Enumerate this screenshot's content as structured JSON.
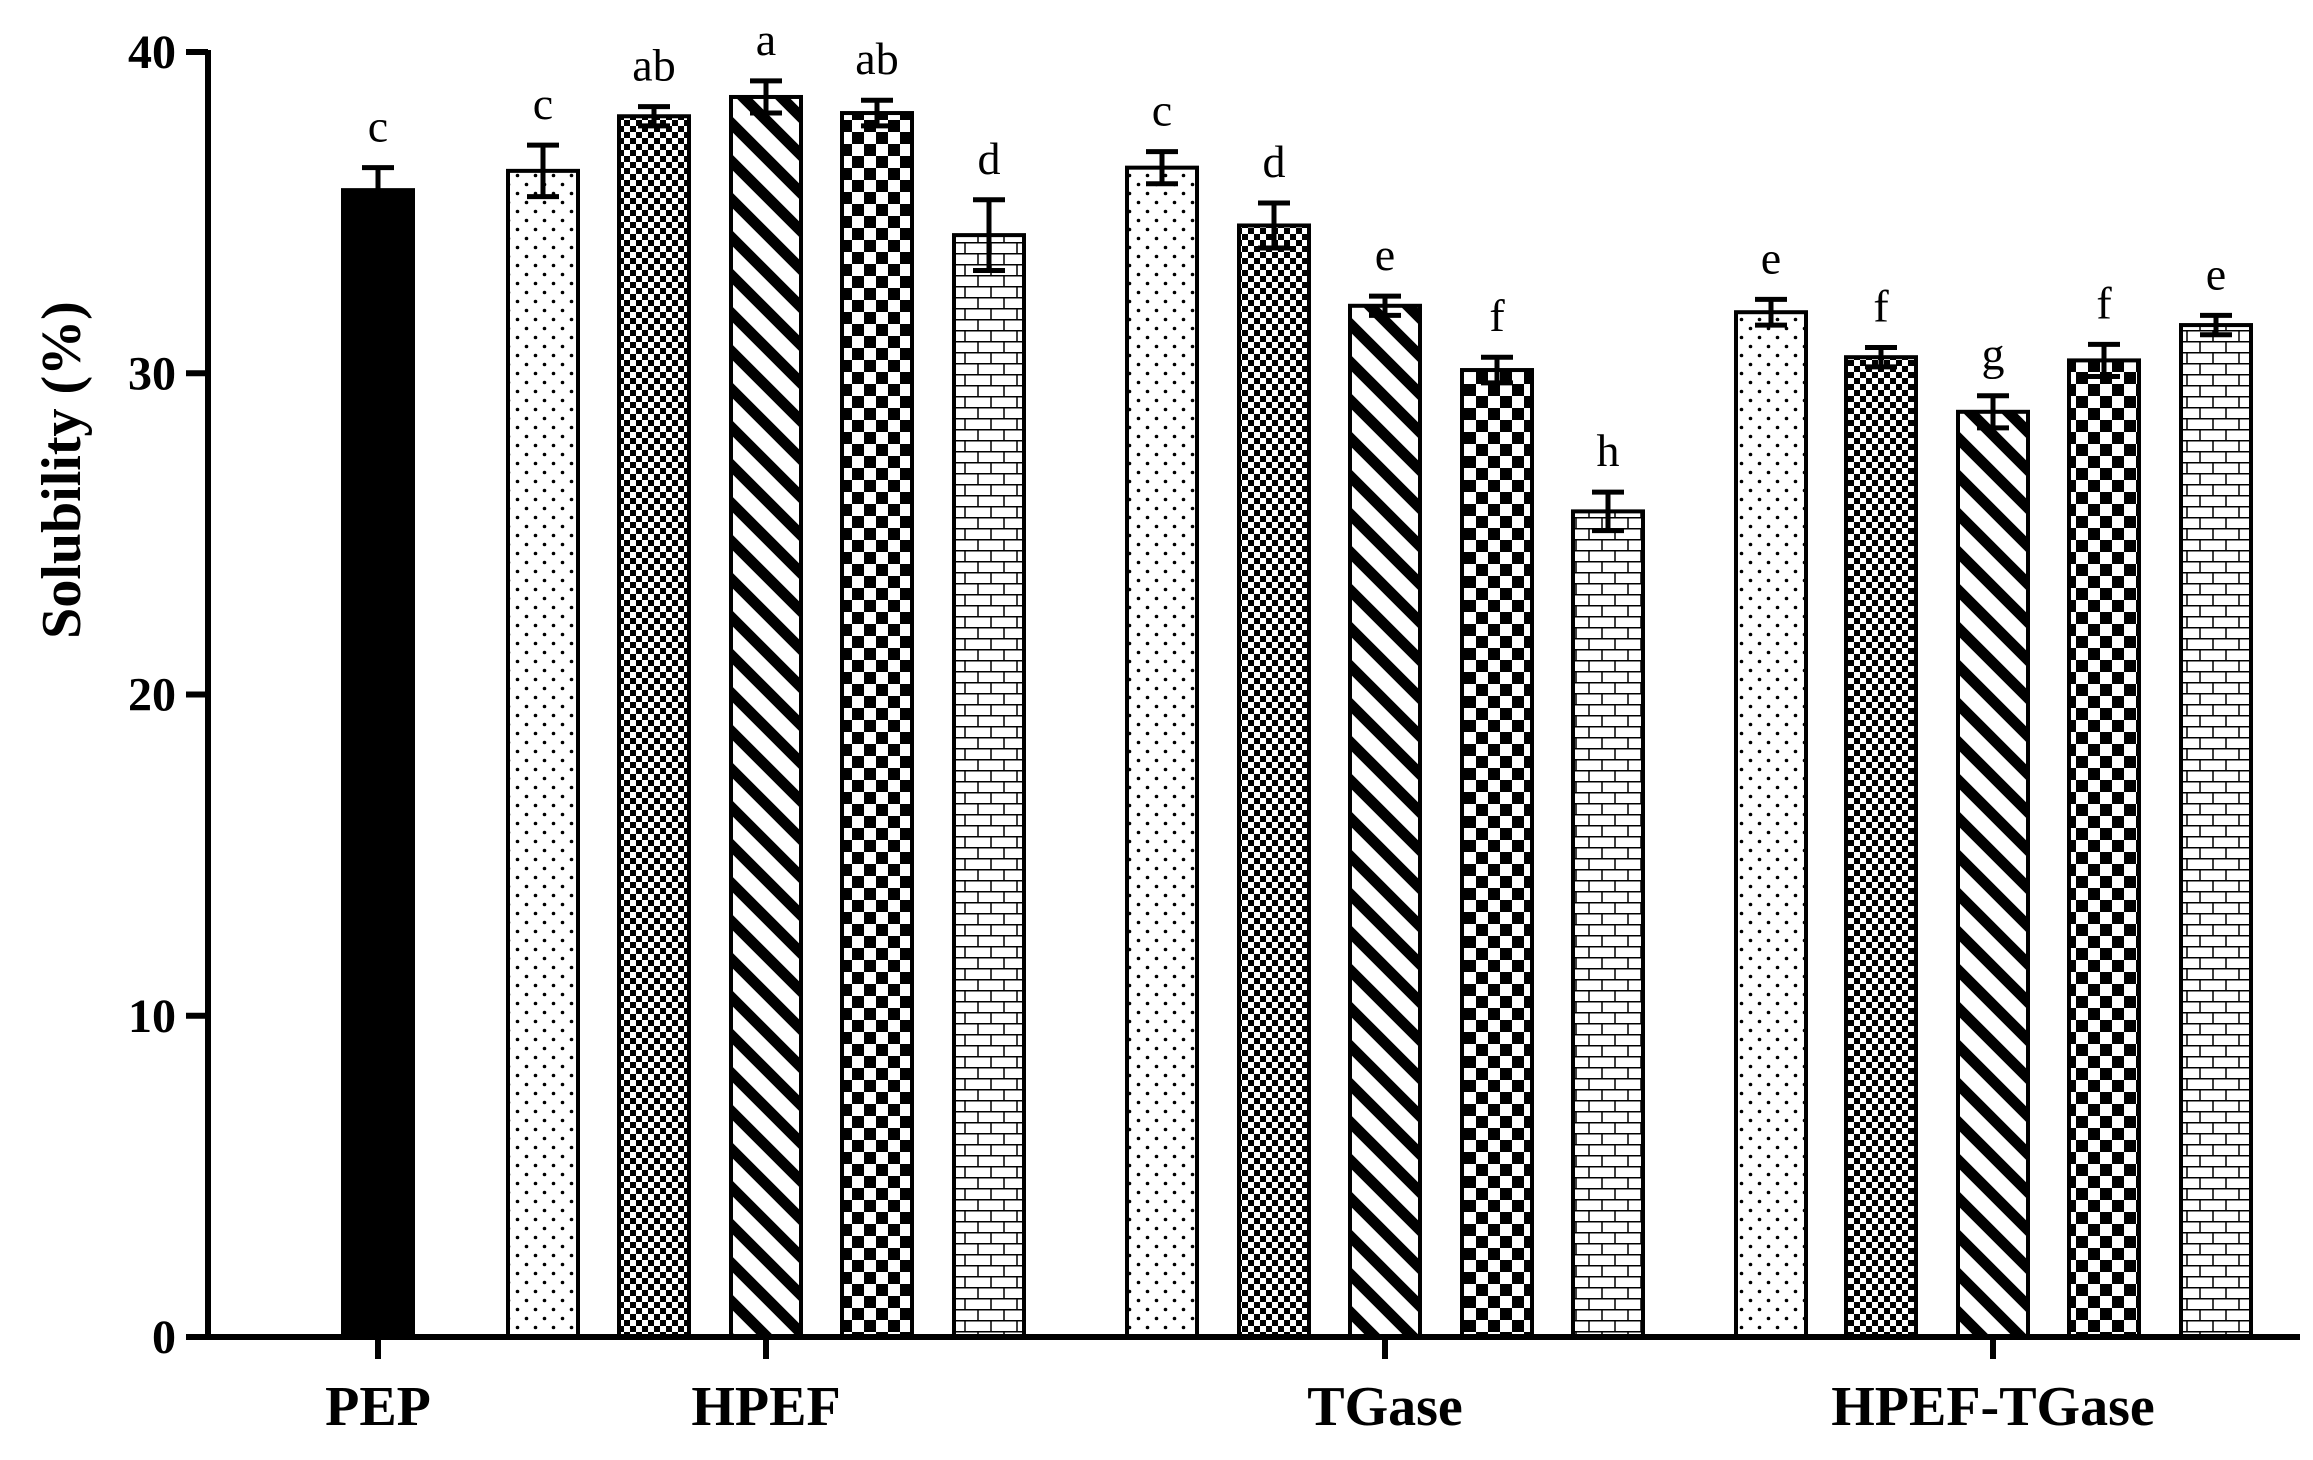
{
  "chart_data": {
    "type": "bar",
    "title": "",
    "xlabel": "",
    "ylabel": "Solubility (%)",
    "ylim": [
      0,
      40
    ],
    "yticks": [
      "0",
      "10",
      "20",
      "30",
      "40"
    ],
    "groups": [
      "PEP",
      "HPEF",
      "TGase",
      "HPEF-TGase"
    ],
    "bars": [
      {
        "group": "PEP",
        "pattern": "solid",
        "value": 35.7,
        "error": 0.7,
        "label": "c"
      },
      {
        "group": "HPEF",
        "pattern": "dots",
        "value": 36.3,
        "error": 0.8,
        "label": "c"
      },
      {
        "group": "HPEF",
        "pattern": "fine-check",
        "value": 38.0,
        "error": 0.3,
        "label": "ab"
      },
      {
        "group": "HPEF",
        "pattern": "diagonal",
        "value": 38.6,
        "error": 0.5,
        "label": "a"
      },
      {
        "group": "HPEF",
        "pattern": "checker",
        "value": 38.1,
        "error": 0.4,
        "label": "ab"
      },
      {
        "group": "HPEF",
        "pattern": "brick",
        "value": 34.3,
        "error": 1.1,
        "label": "d"
      },
      {
        "group": "TGase",
        "pattern": "dots",
        "value": 36.4,
        "error": 0.5,
        "label": "c"
      },
      {
        "group": "TGase",
        "pattern": "fine-check",
        "value": 34.6,
        "error": 0.7,
        "label": "d"
      },
      {
        "group": "TGase",
        "pattern": "diagonal",
        "value": 32.1,
        "error": 0.3,
        "label": "e"
      },
      {
        "group": "TGase",
        "pattern": "checker",
        "value": 30.1,
        "error": 0.4,
        "label": "f"
      },
      {
        "group": "TGase",
        "pattern": "brick",
        "value": 25.7,
        "error": 0.6,
        "label": "h"
      },
      {
        "group": "HPEF-TGase",
        "pattern": "dots",
        "value": 31.9,
        "error": 0.4,
        "label": "e"
      },
      {
        "group": "HPEF-TGase",
        "pattern": "fine-check",
        "value": 30.5,
        "error": 0.3,
        "label": "f"
      },
      {
        "group": "HPEF-TGase",
        "pattern": "diagonal",
        "value": 28.8,
        "error": 0.5,
        "label": "g"
      },
      {
        "group": "HPEF-TGase",
        "pattern": "checker",
        "value": 30.4,
        "error": 0.5,
        "label": "f"
      },
      {
        "group": "HPEF-TGase",
        "pattern": "brick",
        "value": 31.5,
        "error": 0.3,
        "label": "e"
      }
    ]
  }
}
